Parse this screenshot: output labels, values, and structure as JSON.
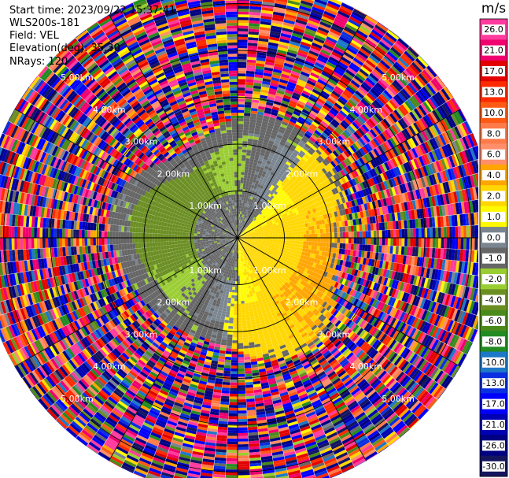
{
  "header": {
    "start_time": "Start time: 2023/09/22 15:37:41",
    "radar": "WLS200s-181",
    "field": "Field: VEL",
    "elevation": "Elevation(deg): 35.30",
    "nrays": "NRays: 120"
  },
  "chart_data": {
    "type": "heatmap",
    "projection": "polar-ppi",
    "field": "VEL",
    "units": "m/s",
    "nrays": 120,
    "max_range_km": 5.5,
    "range_rings_km": [
      1,
      2,
      3,
      4,
      5
    ],
    "ring_labels": [
      "1.00km",
      "2.00km",
      "3.00km",
      "4.00km",
      "5.00km"
    ],
    "spoke_interval_deg": 30,
    "colorbar": {
      "unit": "m/s",
      "ticks": [
        "26.0",
        "21.0",
        "17.0",
        "13.0",
        "10.0",
        "8.0",
        "6.0",
        "4.0",
        "2.0",
        "1.0",
        "0.0",
        "-1.0",
        "-2.0",
        "-4.0",
        "-6.0",
        "-8.0",
        "-10.0",
        "-13.0",
        "-17.0",
        "-21.0",
        "-26.0",
        "-30.0"
      ],
      "bins": [
        {
          "min": 26,
          "max": 30,
          "color": "#ff3b9e"
        },
        {
          "min": 21,
          "max": 26,
          "color": "#f0006f"
        },
        {
          "min": 17,
          "max": 21,
          "color": "#e20000"
        },
        {
          "min": 13,
          "max": 17,
          "color": "#ff2a00"
        },
        {
          "min": 10,
          "max": 13,
          "color": "#ff5a14"
        },
        {
          "min": 8,
          "max": 10,
          "color": "#ff7b4a"
        },
        {
          "min": 6,
          "max": 8,
          "color": "#ff8f6b"
        },
        {
          "min": 4,
          "max": 6,
          "color": "#ffa500"
        },
        {
          "min": 2,
          "max": 4,
          "color": "#ffd700"
        },
        {
          "min": 1,
          "max": 2,
          "color": "#fffa00"
        },
        {
          "min": 0,
          "max": 1,
          "color": "#7a8590"
        },
        {
          "min": -1,
          "max": 0,
          "color": "#666666"
        },
        {
          "min": -2,
          "max": -1,
          "color": "#9acd32"
        },
        {
          "min": -4,
          "max": -2,
          "color": "#6b8e23"
        },
        {
          "min": -6,
          "max": -4,
          "color": "#4a8a1a"
        },
        {
          "min": -8,
          "max": -6,
          "color": "#228b22"
        },
        {
          "min": -10,
          "max": -8,
          "color": "#1e78c8"
        },
        {
          "min": -13,
          "max": -10,
          "color": "#0a2fe0"
        },
        {
          "min": -17,
          "max": -13,
          "color": "#0000ff"
        },
        {
          "min": -21,
          "max": -17,
          "color": "#0000b4"
        },
        {
          "min": -26,
          "max": -21,
          "color": "#000082"
        },
        {
          "min": -30,
          "max": -26,
          "color": "#15155f"
        }
      ]
    },
    "structure_notes": "Inner ~2.6 km shows coherent wind field: positive (yellow) toward east/southeast, negative (green) toward west, near-zero grey band; beyond ~2.6 km returns are random noise across all bins."
  }
}
